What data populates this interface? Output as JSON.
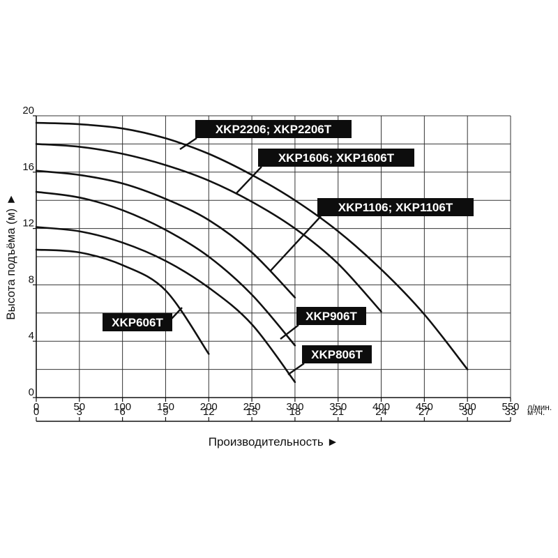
{
  "chart_data": {
    "type": "line",
    "title": "",
    "xlabel": "Производительность ►",
    "ylabel": "Высота подъёма (м) ►",
    "x_unit": "л/мин.",
    "x2_unit": "м³/ч.",
    "xlim": [
      0,
      550
    ],
    "ylim": [
      0,
      20
    ],
    "grid": true,
    "x_ticks": [
      "0",
      "50",
      "100",
      "150",
      "200",
      "250",
      "300",
      "350",
      "400",
      "450",
      "500",
      "550"
    ],
    "x2_ticks": [
      "0",
      "3",
      "6",
      "9",
      "12",
      "15",
      "18",
      "21",
      "24",
      "27",
      "30",
      "33"
    ],
    "y_ticks": [
      "0",
      "4",
      "8",
      "12",
      "16",
      "20"
    ],
    "series": [
      {
        "name": "XKP2206; XKP2206T",
        "x": [
          0,
          50,
          100,
          150,
          200,
          250,
          300,
          350,
          400,
          450,
          500
        ],
        "y": [
          19.5,
          19.4,
          19.1,
          18.4,
          17.3,
          15.8,
          14.0,
          11.8,
          9.1,
          5.9,
          2.0
        ]
      },
      {
        "name": "XKP1606; XKP1606T",
        "x": [
          0,
          50,
          100,
          150,
          200,
          250,
          300,
          350,
          400
        ],
        "y": [
          18.0,
          17.8,
          17.3,
          16.5,
          15.4,
          13.9,
          12.0,
          9.5,
          6.1
        ]
      },
      {
        "name": "XKP1106; XKP1106T",
        "x": [
          0,
          50,
          100,
          150,
          200,
          250,
          300
        ],
        "y": [
          16.1,
          15.8,
          15.2,
          14.1,
          12.6,
          10.3,
          7.1
        ]
      },
      {
        "name": "XKP906T",
        "x": [
          0,
          50,
          100,
          150,
          200,
          250,
          300
        ],
        "y": [
          14.6,
          14.2,
          13.3,
          11.9,
          10.0,
          7.3,
          3.7
        ]
      },
      {
        "name": "XKP806T",
        "x": [
          0,
          50,
          100,
          150,
          200,
          250,
          300
        ],
        "y": [
          12.1,
          11.8,
          11.0,
          9.7,
          7.8,
          5.2,
          1.1
        ]
      },
      {
        "name": "XKP606T",
        "x": [
          0,
          50,
          100,
          150,
          200
        ],
        "y": [
          10.5,
          10.3,
          9.4,
          7.6,
          3.1
        ]
      }
    ],
    "annotations": [
      {
        "text": "XKP2206; XKP2206T",
        "series": 0
      },
      {
        "text": "XKP1606; XKP1606T",
        "series": 1
      },
      {
        "text": "XKP1106; XKP1106T",
        "series": 2
      },
      {
        "text": "XKP906T",
        "series": 3
      },
      {
        "text": "XKP806T",
        "series": 4
      },
      {
        "text": "XKP606T",
        "series": 5
      }
    ]
  }
}
